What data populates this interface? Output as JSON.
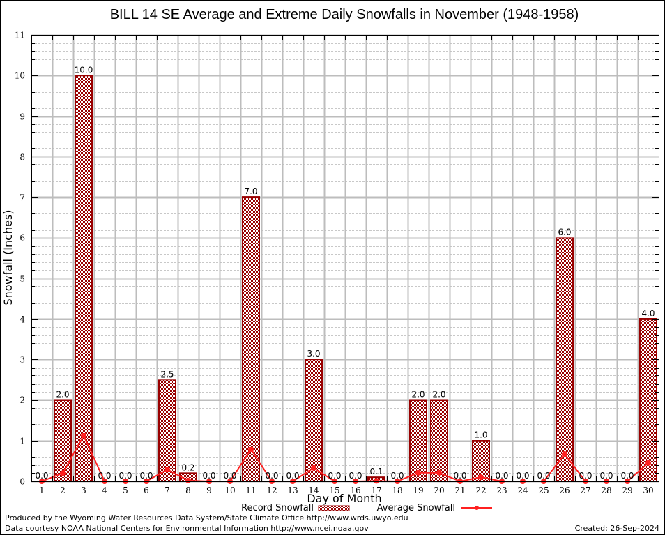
{
  "chart_data": {
    "type": "bar",
    "title": "BILL 14 SE Average and Extreme Daily Snowfalls in November (1948-1958)",
    "xlabel": "Day of Month",
    "ylabel": "Snowfall (Inches)",
    "ylim": [
      0,
      11
    ],
    "yticks": [
      0,
      1,
      2,
      3,
      4,
      5,
      6,
      7,
      8,
      9,
      10,
      11
    ],
    "grid": true,
    "categories": [
      "1",
      "2",
      "3",
      "4",
      "5",
      "6",
      "7",
      "8",
      "9",
      "10",
      "11",
      "12",
      "13",
      "14",
      "15",
      "16",
      "17",
      "18",
      "19",
      "20",
      "21",
      "22",
      "23",
      "24",
      "25",
      "26",
      "27",
      "28",
      "29",
      "30"
    ],
    "series": [
      {
        "name": "Record Snowfall",
        "type": "bar",
        "color": "#990000",
        "values": [
          0.0,
          2.0,
          10.0,
          0.0,
          0.0,
          0.0,
          2.5,
          0.2,
          0.0,
          0.0,
          7.0,
          0.0,
          0.0,
          3.0,
          0.0,
          0.0,
          0.1,
          0.0,
          2.0,
          2.0,
          0.0,
          1.0,
          0.0,
          0.0,
          0.0,
          6.0,
          0.0,
          0.0,
          0.0,
          4.0
        ],
        "labels": [
          "0.0",
          "2.0",
          "10.0",
          "0.0",
          "0.0",
          "0.0",
          "2.5",
          "0.2",
          "0.0",
          "0.0",
          "7.0",
          "0.0",
          "0.0",
          "3.0",
          "0.0",
          "0.0",
          "0.1",
          "0.0",
          "2.0",
          "2.0",
          "0.0",
          "1.0",
          "0.0",
          "0.0",
          "0.0",
          "6.0",
          "0.0",
          "0.0",
          "0.0",
          "4.0"
        ]
      },
      {
        "name": "Average Snowfall",
        "type": "line",
        "color": "#ff2020",
        "values": [
          0.0,
          0.2,
          1.13,
          0.0,
          0.0,
          0.0,
          0.29,
          0.02,
          0.0,
          0.0,
          0.79,
          0.0,
          0.0,
          0.33,
          0.0,
          0.0,
          0.01,
          0.0,
          0.21,
          0.21,
          0.0,
          0.1,
          0.0,
          0.0,
          0.0,
          0.67,
          0.0,
          0.0,
          0.0,
          0.45
        ]
      }
    ],
    "legend": {
      "placement": "bottom-center",
      "entries": [
        "Record Snowfall",
        "Average Snowfall"
      ]
    }
  },
  "footer": {
    "line1": "Produced by the Wyoming Water Resources Data System/State Climate Office http://www.wrds.uwyo.edu",
    "line2": "Data courtesy NOAA National Centers for Environmental Information http://www.ncei.noaa.gov",
    "created": "Created: 26-Sep-2024"
  }
}
